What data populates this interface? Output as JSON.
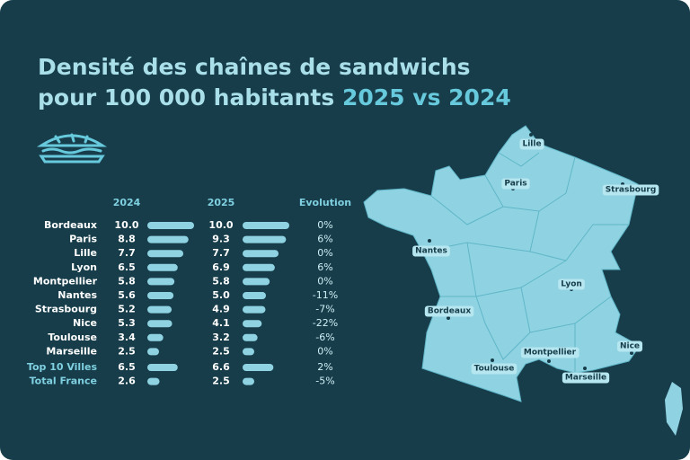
{
  "title_line1": "Densité des chaînes de sandwichs",
  "title_line2": "pour 100 000 habitants",
  "title_highlight": "2025 vs 2024",
  "table": {
    "headers": [
      "2024",
      "2025",
      "Evolution"
    ],
    "rows": [
      {
        "city": "Bordeaux",
        "y2024": {
          "value": 10,
          "label": "10.0"
        },
        "y2025": {
          "value": 10,
          "label": "10.0"
        },
        "evolution": "0%"
      },
      {
        "city": "Paris",
        "y2024": 8.8,
        "y2025": 9.3,
        "evolution": "6%"
      },
      {
        "city": "Lille",
        "y2024": 7.7,
        "y2025": 7.7,
        "evolution": "0%"
      },
      {
        "city": "Lyon",
        "y2024": 6.5,
        "y2025": 6.9,
        "evolution": "6%"
      },
      {
        "city": "Montpellier",
        "y2024": 5.8,
        "y2025": 5.8,
        "evolution": "0%"
      },
      {
        "city": "Nantes",
        "y2024": 5.6,
        "y2025": {
          "value": 5,
          "label": "5.0"
        },
        "evolution": "-11%"
      },
      {
        "city": "Strasbourg",
        "y2024": 5.2,
        "y2025": 4.9,
        "evolution": "-7%"
      },
      {
        "city": "Nice",
        "y2024": 5.3,
        "y2025": 4.1,
        "evolution": "-22%"
      },
      {
        "city": "Toulouse",
        "y2024": 3.4,
        "y2025": 3.2,
        "evolution": "-6%"
      },
      {
        "city": "Marseille",
        "y2024": 2.5,
        "y2025": 2.5,
        "evolution": "0%"
      }
    ],
    "totals": [
      {
        "city": "Top 10 Villes",
        "y2024": 6.5,
        "y2025": 6.6,
        "evolution": "2%"
      },
      {
        "city": "Total France",
        "y2024": 2.6,
        "y2025": 2.5,
        "evolution": "-5%"
      }
    ]
  },
  "map": {
    "cities": [
      "Lille",
      "Paris",
      "Strasbourg",
      "Nantes",
      "Lyon",
      "Bordeaux",
      "Montpellier",
      "Nice",
      "Toulouse",
      "Marseille"
    ]
  }
}
